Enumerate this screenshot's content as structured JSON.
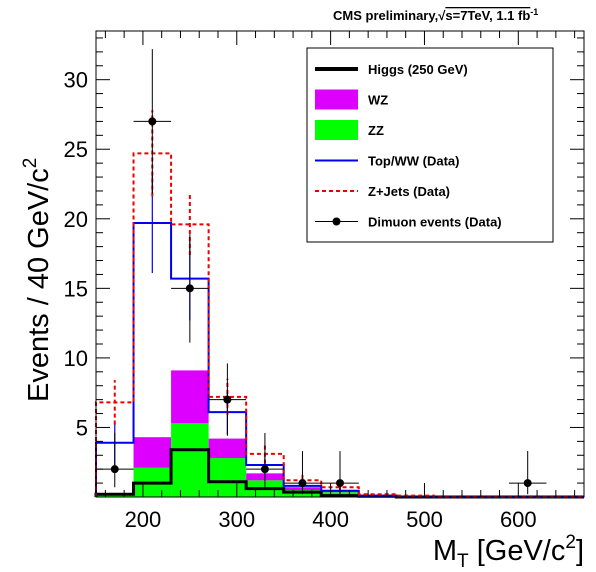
{
  "header": {
    "prefix": "CMS preliminary,",
    "sqrt": "√",
    "rest": "s=7TeV, 1.1 fb",
    "exp": "-1"
  },
  "chart_data": {
    "type": "bar",
    "stacked_histogram": true,
    "bin_edges": [
      150,
      190,
      230,
      270,
      310,
      350,
      390,
      430,
      470,
      510,
      550,
      590,
      630,
      670
    ],
    "xlim": [
      150,
      670
    ],
    "ylim": [
      0,
      33.5
    ],
    "x_ticks": [
      200,
      300,
      400,
      500,
      600
    ],
    "y_ticks": [
      5,
      10,
      15,
      20,
      25,
      30
    ],
    "xlabel": {
      "main": "M",
      "sub": "T",
      "rest": " [GeV/c",
      "sup": "2",
      "end": "]"
    },
    "ylabel": {
      "main": "Events / 40 GeV/c",
      "sup": "2"
    },
    "series": [
      {
        "name": "Higgs (250 GeV)",
        "style": "line",
        "color": "#000000",
        "values": [
          0.2,
          1.0,
          3.4,
          1.1,
          0.6,
          0.35,
          0.1,
          0.05,
          0,
          0,
          0,
          0,
          0
        ]
      },
      {
        "name": "WZ",
        "style": "stack",
        "color": "#dd00ff",
        "values": [
          0.1,
          2.2,
          3.8,
          1.4,
          0.5,
          0.2,
          0.1,
          0.05,
          0,
          0,
          0,
          0,
          0
        ]
      },
      {
        "name": "ZZ",
        "style": "stack",
        "color": "#00ff00",
        "values": [
          0.1,
          2.1,
          5.3,
          2.8,
          1.2,
          0.5,
          0.35,
          0.1,
          0.05,
          0,
          0,
          0,
          0
        ]
      },
      {
        "name": "Top/WW (Data)",
        "style": "line",
        "color": "#0000ee",
        "values": [
          3.9,
          19.7,
          15.7,
          6.1,
          2.3,
          0.8,
          0.45,
          0.1,
          0,
          0,
          0,
          0,
          0
        ],
        "errors": [
          1.6,
          3.6,
          3.0,
          1.6,
          0.9,
          0.5,
          0.3,
          0,
          0,
          0,
          0,
          0,
          0
        ]
      },
      {
        "name": "Z+Jets (Data)",
        "style": "dashed",
        "color": "#ee0000",
        "values": [
          6.8,
          24.7,
          19.6,
          7.2,
          3.1,
          1.2,
          0.7,
          0.2,
          0.1,
          0,
          0,
          0,
          0
        ],
        "errors": [
          1.6,
          3.1,
          2.2,
          1.3,
          0.7,
          0.4,
          0.2,
          0,
          0,
          0,
          0,
          0,
          0
        ]
      }
    ],
    "data_points": {
      "name": "Dimuon events (Data)",
      "x": [
        170,
        210,
        250,
        290,
        330,
        370,
        410,
        610
      ],
      "y": [
        2,
        27,
        15,
        7,
        2,
        1,
        1,
        1
      ],
      "err_low": [
        1.3,
        5.2,
        3.9,
        2.6,
        1.3,
        0.8,
        0.8,
        0.8
      ],
      "err_high": [
        2.6,
        5.2,
        3.9,
        2.6,
        2.6,
        2.3,
        2.3,
        2.3
      ]
    },
    "legend_position": "top-right"
  }
}
